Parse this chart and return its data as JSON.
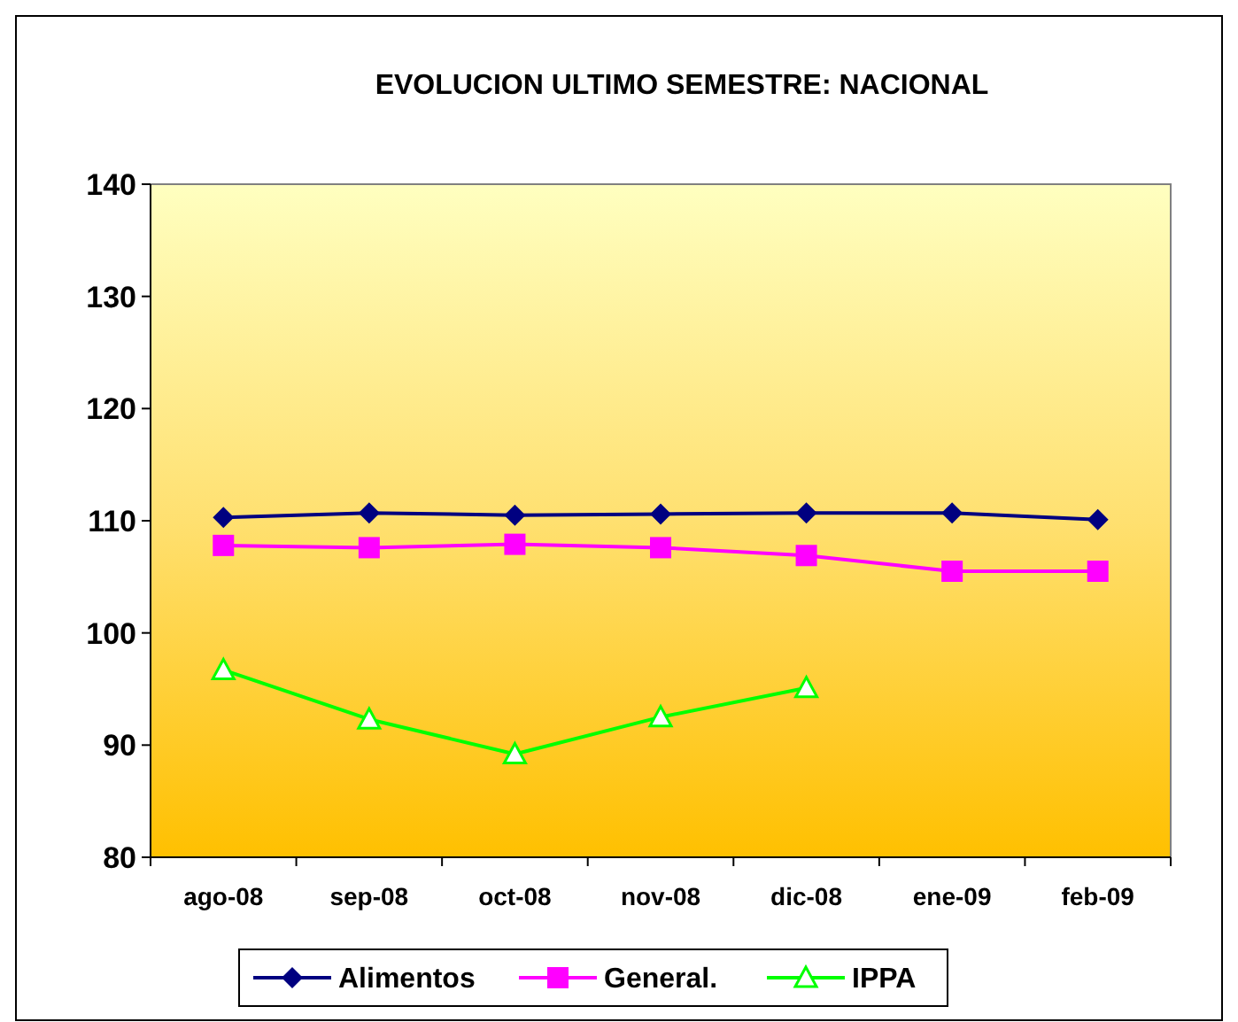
{
  "chart_data": {
    "type": "line",
    "title": "EVOLUCION ULTIMO SEMESTRE: NACIONAL",
    "categories": [
      "ago-08",
      "sep-08",
      "oct-08",
      "nov-08",
      "dic-08",
      "ene-09",
      "feb-09"
    ],
    "ylim": [
      80,
      140
    ],
    "yticks": [
      80,
      90,
      100,
      110,
      120,
      130,
      140
    ],
    "grid": false,
    "legend": "bottom",
    "line_style": "solid",
    "series": [
      {
        "name": "Alimentos",
        "color": "#000080",
        "marker": "diamond",
        "values": [
          110.3,
          110.7,
          110.5,
          110.6,
          110.7,
          110.7,
          110.1
        ]
      },
      {
        "name": "General.",
        "color": "#ff00ff",
        "marker": "square",
        "values": [
          107.8,
          107.6,
          107.9,
          107.6,
          106.9,
          105.5,
          105.5
        ]
      },
      {
        "name": "IPPA",
        "color": "#00ff00",
        "marker": "triangle",
        "values": [
          96.7,
          92.3,
          89.2,
          92.5,
          95.1,
          null,
          null
        ]
      }
    ]
  }
}
